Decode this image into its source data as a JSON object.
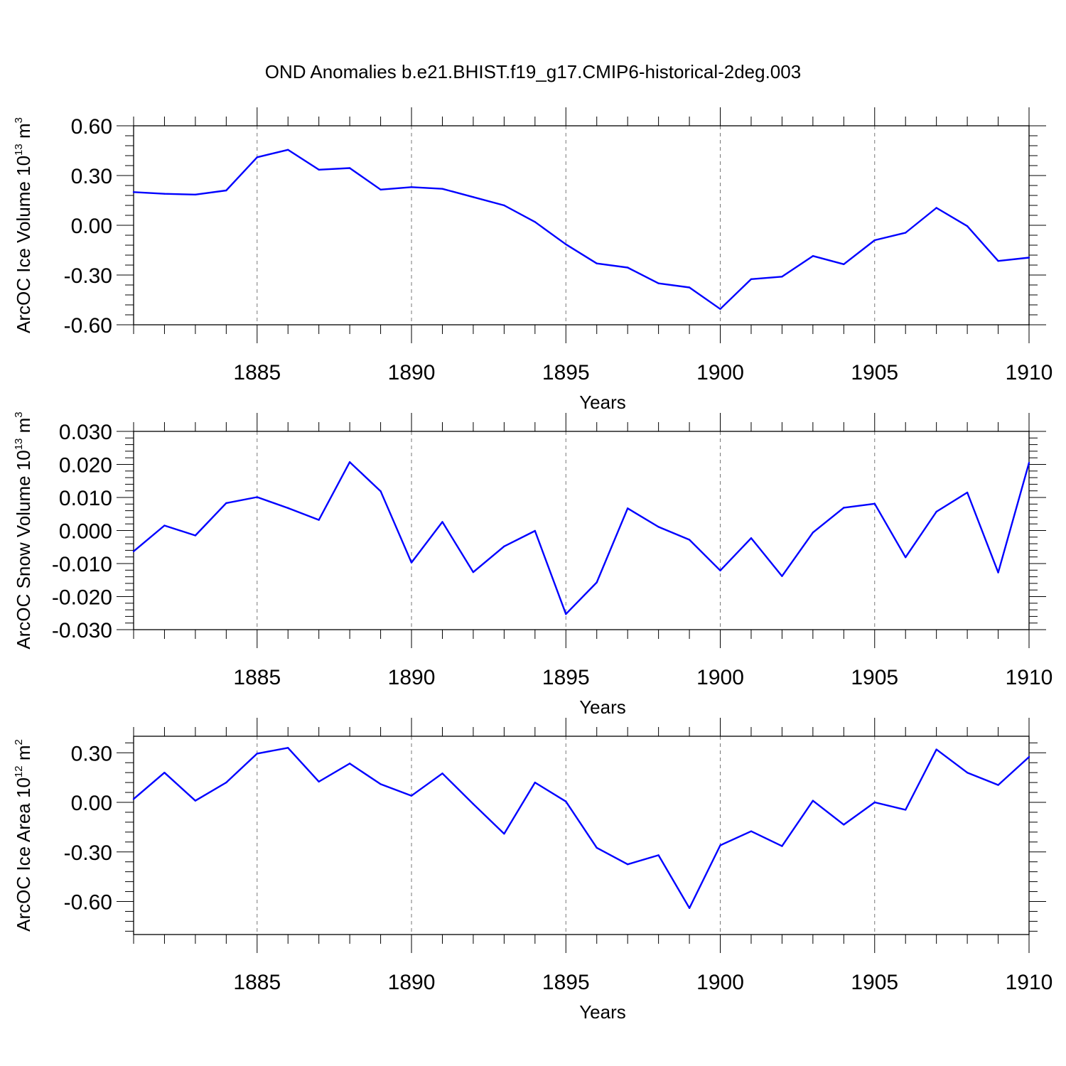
{
  "chart_data": [
    {
      "type": "line",
      "title": "OND Anomalies b.e21.BHIST.f19_g17.CMIP6-historical-2deg.003",
      "ylabel": {
        "text": "ArcOC Ice Volume 10",
        "exp": "13",
        "unit": " m",
        "unit_exp": "3"
      },
      "xlabel": "Years",
      "xlim": [
        1881,
        1910
      ],
      "ylim": [
        -0.6,
        0.6
      ],
      "yticks": [
        -0.6,
        -0.3,
        0.0,
        0.3,
        0.6
      ],
      "ytick_labels": [
        "-0.60",
        "-0.30",
        "0.00",
        "0.30",
        "0.60"
      ],
      "xticks": [
        1885,
        1890,
        1895,
        1900,
        1905,
        1910
      ],
      "xtick_labels": [
        "1885",
        "1890",
        "1895",
        "1900",
        "1905",
        "1910"
      ],
      "grid_x": true,
      "color": "#0000ff",
      "x": [
        1881,
        1882,
        1883,
        1884,
        1885,
        1886,
        1887,
        1888,
        1889,
        1890,
        1891,
        1892,
        1893,
        1894,
        1895,
        1896,
        1897,
        1898,
        1899,
        1900,
        1901,
        1902,
        1903,
        1904,
        1905,
        1906,
        1907,
        1908,
        1909,
        1910
      ],
      "values": [
        0.2,
        0.19,
        0.185,
        0.21,
        0.41,
        0.455,
        0.335,
        0.345,
        0.215,
        0.23,
        0.22,
        0.17,
        0.12,
        0.02,
        -0.115,
        -0.23,
        -0.255,
        -0.35,
        -0.375,
        -0.505,
        -0.325,
        -0.31,
        -0.185,
        -0.235,
        -0.09,
        -0.045,
        0.105,
        -0.005,
        -0.215,
        -0.195
      ]
    },
    {
      "type": "line",
      "ylabel": {
        "text": "ArcOC Snow Volume 10",
        "exp": "13",
        "unit": " m",
        "unit_exp": "3"
      },
      "xlabel": "Years",
      "xlim": [
        1881,
        1910
      ],
      "ylim": [
        -0.03,
        0.03
      ],
      "yticks": [
        -0.03,
        -0.02,
        -0.01,
        0.0,
        0.01,
        0.02,
        0.03
      ],
      "ytick_labels": [
        "-0.030",
        "-0.020",
        "-0.010",
        "0.000",
        "0.010",
        "0.020",
        "0.030"
      ],
      "xticks": [
        1885,
        1890,
        1895,
        1900,
        1905,
        1910
      ],
      "xtick_labels": [
        "1885",
        "1890",
        "1895",
        "1900",
        "1905",
        "1910"
      ],
      "grid_x": true,
      "color": "#0000ff",
      "x": [
        1881,
        1882,
        1883,
        1884,
        1885,
        1886,
        1887,
        1888,
        1889,
        1890,
        1891,
        1892,
        1893,
        1894,
        1895,
        1896,
        1897,
        1898,
        1899,
        1900,
        1901,
        1902,
        1903,
        1904,
        1905,
        1906,
        1907,
        1908,
        1909,
        1910
      ],
      "values": [
        -0.0063,
        0.0015,
        -0.0015,
        0.0083,
        0.0101,
        0.0068,
        0.0032,
        0.0207,
        0.0119,
        -0.0097,
        0.0026,
        -0.0126,
        -0.0048,
        -0.0001,
        -0.0253,
        -0.0157,
        0.0067,
        0.0011,
        -0.0028,
        -0.0121,
        -0.0023,
        -0.0138,
        -0.0006,
        0.0069,
        0.0081,
        -0.0081,
        0.0057,
        0.0115,
        -0.0127,
        0.0205
      ]
    },
    {
      "type": "line",
      "ylabel": {
        "text": "ArcOC Ice Area 10",
        "exp": "12",
        "unit": " m",
        "unit_exp": "2"
      },
      "xlabel": "Years",
      "xlim": [
        1881,
        1910
      ],
      "ylim": [
        -0.8,
        0.4
      ],
      "yticks": [
        -0.6,
        -0.3,
        0.0,
        0.3
      ],
      "ytick_labels": [
        "-0.60",
        "-0.30",
        "0.00",
        "0.30"
      ],
      "xticks": [
        1885,
        1890,
        1895,
        1900,
        1905,
        1910
      ],
      "xtick_labels": [
        "1885",
        "1890",
        "1895",
        "1900",
        "1905",
        "1910"
      ],
      "grid_x": true,
      "color": "#0000ff",
      "x": [
        1881,
        1882,
        1883,
        1884,
        1885,
        1886,
        1887,
        1888,
        1889,
        1890,
        1891,
        1892,
        1893,
        1894,
        1895,
        1896,
        1897,
        1898,
        1899,
        1900,
        1901,
        1902,
        1903,
        1904,
        1905,
        1906,
        1907,
        1908,
        1909,
        1910
      ],
      "values": [
        0.02,
        0.18,
        0.01,
        0.12,
        0.295,
        0.33,
        0.125,
        0.235,
        0.11,
        0.04,
        0.175,
        -0.01,
        -0.19,
        0.12,
        0.005,
        -0.275,
        -0.375,
        -0.32,
        -0.64,
        -0.26,
        -0.175,
        -0.265,
        0.01,
        -0.135,
        0.0,
        -0.045,
        0.32,
        0.18,
        0.105,
        0.275
      ]
    }
  ]
}
